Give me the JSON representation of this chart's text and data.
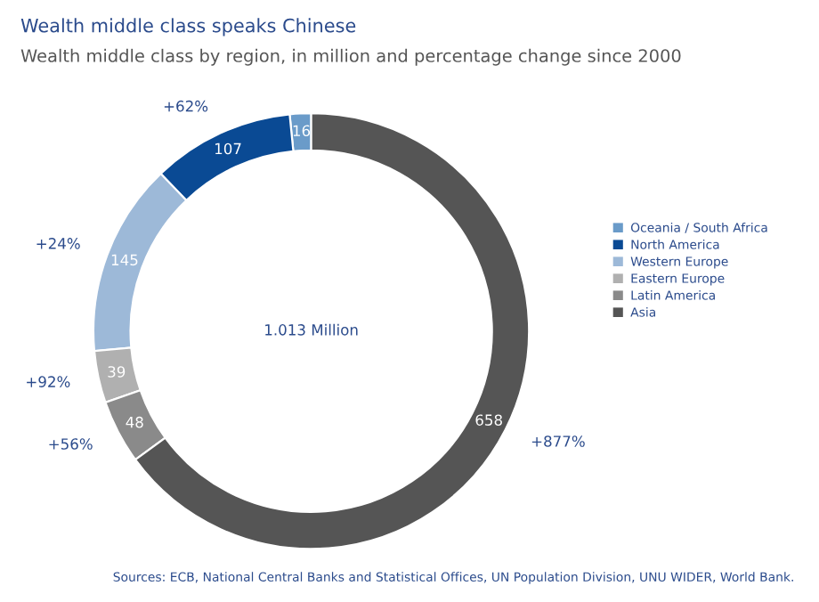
{
  "chart_data": {
    "type": "donut",
    "title": "Wealth middle class speaks Chinese",
    "subtitle": "Wealth middle class by region, in million and percentage change since 2000",
    "categories": [
      "Oceania / South Africa",
      "North America",
      "Western Europe",
      "Eastern Europe",
      "Latin America",
      "Asia"
    ],
    "values": [
      16,
      107,
      145,
      39,
      48,
      658
    ],
    "colors": [
      "#6a9bc9",
      "#0a4a94",
      "#9db9d8",
      "#b0b0b0",
      "#8a8a8a",
      "#555555"
    ],
    "data_labels": true,
    "legend": "right",
    "annotations": [
      {
        "text": "+62%",
        "x": "North America"
      },
      {
        "text": "+24%",
        "x": "Western Europe"
      },
      {
        "text": "+92%",
        "x": "Eastern Europe"
      },
      {
        "text": "+56%",
        "x": "Latin America"
      },
      {
        "text": "+877%",
        "x": "Asia"
      },
      "1.013 Million",
      "Sources: ECB, National Central Banks and Statistical Offices, UN Population Division, UNU WIDER, World Bank."
    ]
  }
}
